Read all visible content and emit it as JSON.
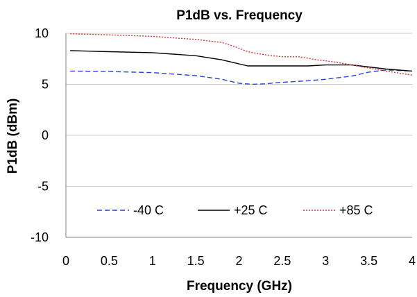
{
  "chart_data": {
    "type": "line",
    "title": "P1dB vs. Frequency",
    "xlabel": "Frequency (GHz)",
    "ylabel": "P1dB (dBm)",
    "xlim": [
      0,
      4
    ],
    "ylim": [
      -10,
      10
    ],
    "xticks": [
      "0",
      "0.5",
      "1",
      "1.5",
      "2",
      "2.5",
      "3",
      "3.5",
      "4"
    ],
    "yticks": [
      "10",
      "5",
      "0",
      "-5",
      "-10"
    ],
    "grid": "horizontal",
    "legend_position": "bottom-center",
    "series": [
      {
        "name": "-40 C",
        "color": "#2a3fe0",
        "style": "dashed",
        "x": [
          0.05,
          0.5,
          1.0,
          1.5,
          1.8,
          2.0,
          2.15,
          2.3,
          2.5,
          2.8,
          3.0,
          3.3,
          3.5,
          3.7,
          4.0
        ],
        "y": [
          6.3,
          6.25,
          6.15,
          5.85,
          5.5,
          5.1,
          5.0,
          5.05,
          5.2,
          5.35,
          5.5,
          5.8,
          6.2,
          6.4,
          6.3
        ]
      },
      {
        "name": "+25 C",
        "color": "#000000",
        "style": "solid",
        "x": [
          0.05,
          0.5,
          1.0,
          1.5,
          1.8,
          2.0,
          2.1,
          2.3,
          2.5,
          2.8,
          3.0,
          3.3,
          3.5,
          3.7,
          4.0
        ],
        "y": [
          8.3,
          8.2,
          8.1,
          7.8,
          7.4,
          7.0,
          6.8,
          6.8,
          6.8,
          6.8,
          6.9,
          6.9,
          6.7,
          6.5,
          6.3
        ]
      },
      {
        "name": "+85 C",
        "color": "#e03030",
        "style": "dotted",
        "x": [
          0.05,
          0.5,
          1.0,
          1.5,
          1.8,
          1.95,
          2.1,
          2.3,
          2.5,
          2.7,
          2.9,
          3.1,
          3.3,
          3.5,
          3.7,
          4.0
        ],
        "y": [
          9.95,
          9.85,
          9.7,
          9.4,
          9.1,
          8.7,
          8.2,
          7.9,
          7.7,
          7.7,
          7.4,
          7.2,
          6.9,
          6.6,
          6.3,
          5.9
        ]
      }
    ]
  }
}
